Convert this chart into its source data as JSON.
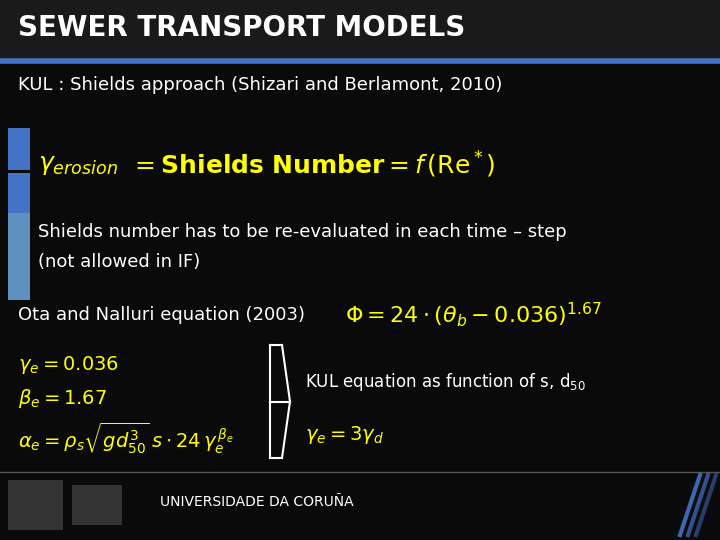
{
  "bg_color": "#0a0a0a",
  "title_bg_color": "#1a1a1a",
  "title_text": "SEWER TRANSPORT MODELS",
  "title_color": "#ffffff",
  "title_underline_color": "#4472c4",
  "subtitle_text": "KUL : Shields approach (Shizari and Berlamont, 2010)",
  "body_text_color": "#ffffff",
  "yellow_color": "#ffff00",
  "blue_sidebar_color": "#4472c4",
  "blue_sidebar_light": "#6090c0",
  "footer_text": "UNIVERSIDADE DA CORUÑA",
  "title_fontsize": 20,
  "subtitle_fontsize": 13,
  "body_fontsize": 13,
  "formula_fontsize": 18,
  "small_formula_fontsize": 14
}
